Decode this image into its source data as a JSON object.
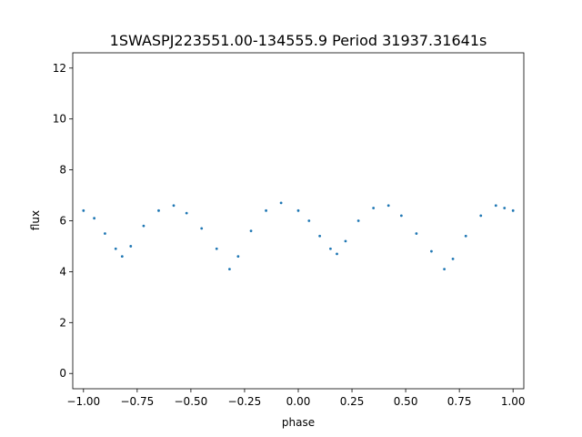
{
  "chart_data": {
    "type": "scatter",
    "title": "1SWASPJ223551.00-134555.9 Period 31937.31641s",
    "xlabel": "phase",
    "ylabel": "flux",
    "xlim": [
      -1.05,
      1.05
    ],
    "ylim": [
      -0.6,
      12.6
    ],
    "xticks": [
      -1.0,
      -0.75,
      -0.5,
      -0.25,
      0.0,
      0.25,
      0.5,
      0.75,
      1.0
    ],
    "xtick_labels": [
      "−1.00",
      "−0.75",
      "−0.50",
      "−0.25",
      "0.00",
      "0.25",
      "0.50",
      "0.75",
      "1.00"
    ],
    "yticks": [
      0,
      2,
      4,
      6,
      8,
      10,
      12
    ],
    "ytick_labels": [
      "0",
      "2",
      "4",
      "6",
      "8",
      "10",
      "12"
    ],
    "grid": false,
    "point_color": "#1f77b4",
    "series": [
      {
        "x": [
          -1.0,
          -0.95,
          -0.9,
          -0.85,
          -0.82,
          -0.78,
          -0.72,
          -0.65,
          -0.58,
          -0.52,
          -0.45,
          -0.38,
          -0.32,
          -0.28,
          -0.22,
          -0.15,
          -0.08,
          0.0,
          0.05,
          0.1,
          0.15,
          0.18,
          0.22,
          0.28,
          0.35,
          0.42,
          0.48,
          0.55,
          0.62,
          0.68,
          0.72,
          0.78,
          0.85,
          0.92,
          0.96,
          1.0
        ],
        "y": [
          6.4,
          6.1,
          5.5,
          4.9,
          4.6,
          5.0,
          5.8,
          6.4,
          6.6,
          6.3,
          5.7,
          4.9,
          4.1,
          4.6,
          5.6,
          6.4,
          6.7,
          6.4,
          6.0,
          5.4,
          4.9,
          4.7,
          5.2,
          6.0,
          6.5,
          6.6,
          6.2,
          5.5,
          4.8,
          4.1,
          4.5,
          5.4,
          6.2,
          6.6,
          6.5,
          6.4
        ]
      }
    ]
  }
}
